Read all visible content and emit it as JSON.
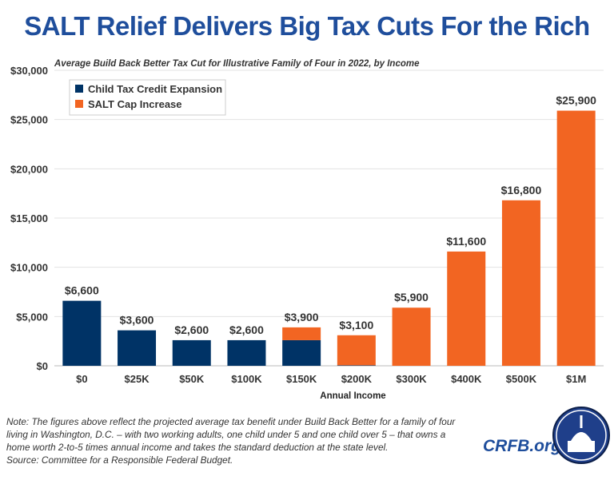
{
  "title": "SALT Relief Delivers Big Tax Cuts For the Rich",
  "note": "Note: The figures above reflect the projected average tax benefit under Build Back Better for a family of four living in Washington, D.C. – with two working adults, one child under 5 and one child over 5 – that owns a home worth 2-to-5 times annual income and takes the standard deduction at the state level.",
  "source": "Source: Committee for a Responsible Federal Budget.",
  "brand": "CRFB.org",
  "chart_data": {
    "type": "bar",
    "stacked": true,
    "title": "Average Build Back Better Tax Cut for Illustrative Family of Four in 2022, by Income",
    "xlabel": "Annual Income",
    "ylabel": "",
    "ylim": [
      0,
      30000
    ],
    "yticks": [
      0,
      5000,
      10000,
      15000,
      20000,
      25000,
      30000
    ],
    "ytick_labels": [
      "$0",
      "$5,000",
      "$10,000",
      "$15,000",
      "$20,000",
      "$25,000",
      "$30,000"
    ],
    "grid": true,
    "legend": "top-left",
    "categories": [
      "$0",
      "$25K",
      "$50K",
      "$100K",
      "$150K",
      "$200K",
      "$300K",
      "$400K",
      "$500K",
      "$1M"
    ],
    "series": [
      {
        "name": "Child Tax Credit Expansion",
        "color": "#003366",
        "values": [
          6600,
          3600,
          2600,
          2600,
          2600,
          50,
          0,
          0,
          0,
          0
        ]
      },
      {
        "name": "SALT Cap Increase",
        "color": "#f26522",
        "values": [
          0,
          0,
          0,
          0,
          1300,
          3050,
          5900,
          11600,
          16800,
          25900
        ]
      }
    ],
    "data_labels": [
      "$6,600",
      "$3,600",
      "$2,600",
      "$2,600",
      "$3,900",
      "$3,100",
      "$5,900",
      "$11,600",
      "$16,800",
      "$25,900"
    ]
  }
}
